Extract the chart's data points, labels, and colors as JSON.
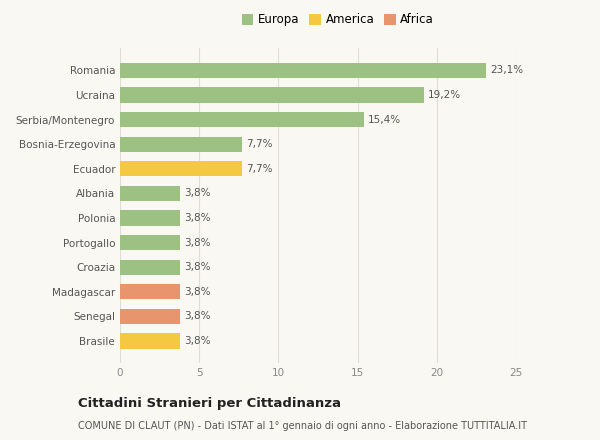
{
  "categories": [
    "Brasile",
    "Senegal",
    "Madagascar",
    "Croazia",
    "Portogallo",
    "Polonia",
    "Albania",
    "Ecuador",
    "Bosnia-Erzegovina",
    "Serbia/Montenegro",
    "Ucraina",
    "Romania"
  ],
  "values": [
    3.8,
    3.8,
    3.8,
    3.8,
    3.8,
    3.8,
    3.8,
    7.7,
    7.7,
    15.4,
    19.2,
    23.1
  ],
  "labels": [
    "3,8%",
    "3,8%",
    "3,8%",
    "3,8%",
    "3,8%",
    "3,8%",
    "3,8%",
    "7,7%",
    "7,7%",
    "15,4%",
    "19,2%",
    "23,1%"
  ],
  "colors": [
    "#f5c842",
    "#e8956d",
    "#e8956d",
    "#9dc183",
    "#9dc183",
    "#9dc183",
    "#9dc183",
    "#f5c842",
    "#9dc183",
    "#9dc183",
    "#9dc183",
    "#9dc183"
  ],
  "legend": {
    "Europa": "#9dc183",
    "America": "#f5c842",
    "Africa": "#e8956d"
  },
  "legend_order": [
    "Europa",
    "America",
    "Africa"
  ],
  "xlim": [
    0,
    25
  ],
  "xticks": [
    0,
    5,
    10,
    15,
    20,
    25
  ],
  "title": "Cittadini Stranieri per Cittadinanza",
  "subtitle": "COMUNE DI CLAUT (PN) - Dati ISTAT al 1° gennaio di ogni anno - Elaborazione TUTTITALIA.IT",
  "background_color": "#faf8f2",
  "grid_color": "#e0ddd6",
  "label_fontsize": 7.5,
  "ytick_fontsize": 7.5,
  "xtick_fontsize": 7.5,
  "title_fontsize": 9.5,
  "subtitle_fontsize": 7,
  "legend_fontsize": 8.5,
  "bar_height": 0.62
}
